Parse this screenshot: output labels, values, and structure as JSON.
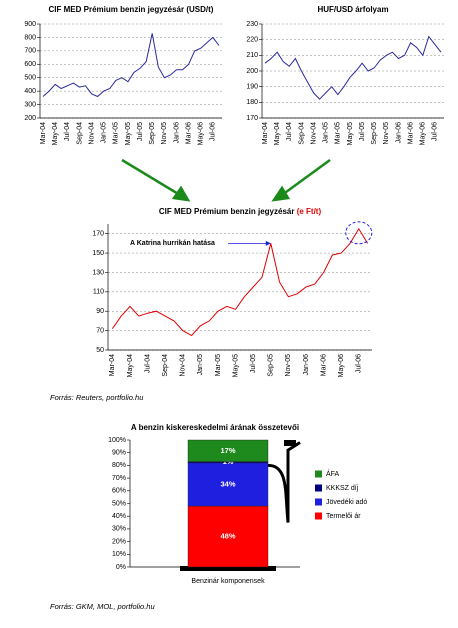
{
  "chart_data": [
    {
      "type": "line",
      "title": "CIF MED Prémium benzin jegyzésár (USD/t)",
      "categories": [
        "Mar-04",
        null,
        "May-04",
        null,
        "Jul-04",
        null,
        "Sep-04",
        null,
        "Nov-04",
        null,
        "Jan-05",
        null,
        "Mar-05",
        null,
        "May-05",
        null,
        "Jul-05",
        null,
        "Sep-05",
        null,
        "Nov-05",
        null,
        "Jan-06",
        null,
        "Mar-06",
        null,
        "May-06",
        null,
        "Jul-06",
        null
      ],
      "series": [
        {
          "color": "#2a2aa0",
          "values": [
            360,
            400,
            450,
            420,
            440,
            460,
            430,
            440,
            380,
            360,
            400,
            420,
            480,
            500,
            470,
            540,
            570,
            620,
            830,
            580,
            500,
            520,
            560,
            560,
            600,
            700,
            720,
            760,
            800,
            740
          ]
        }
      ],
      "ylim": [
        200,
        900
      ],
      "yticks": [
        200,
        300,
        400,
        500,
        600,
        700,
        800,
        900
      ],
      "grid": true
    },
    {
      "type": "line",
      "title": "HUF/USD árfolyam",
      "categories": [
        "Mar-04",
        null,
        "May-04",
        null,
        "Jul-04",
        null,
        "Sep-04",
        null,
        "Nov-04",
        null,
        "Jan-05",
        null,
        "Mar-05",
        null,
        "May-05",
        null,
        "Jul-05",
        null,
        "Sep-05",
        null,
        "Nov-05",
        null,
        "Jan-06",
        null,
        "Mar-06",
        null,
        "May-06",
        null,
        "Jul-06",
        null
      ],
      "series": [
        {
          "color": "#2a2aa0",
          "values": [
            205,
            208,
            212,
            206,
            203,
            208,
            200,
            193,
            186,
            182,
            186,
            190,
            185,
            190,
            196,
            200,
            205,
            200,
            202,
            207,
            210,
            212,
            208,
            210,
            218,
            215,
            210,
            222,
            217,
            212
          ]
        }
      ],
      "ylim": [
        170,
        230
      ],
      "yticks": [
        170,
        180,
        190,
        200,
        210,
        220,
        230
      ],
      "grid": true
    },
    {
      "type": "line",
      "title": "CIF MED Prémium benzin jegyzésár ",
      "title_unit": "(e Ft/t)",
      "annotation": "A Katrina hurrikán hatása",
      "categories": [
        "Mar-04",
        null,
        "May-04",
        null,
        "Jul-04",
        null,
        "Sep-04",
        null,
        "Nov-04",
        null,
        "Jan-05",
        null,
        "Mar-05",
        null,
        "May-05",
        null,
        "Jul-05",
        null,
        "Sep-05",
        null,
        "Nov-05",
        null,
        "Jan-06",
        null,
        "Mar-06",
        null,
        "May-06",
        null,
        "Jul-06",
        null
      ],
      "series": [
        {
          "color": "#e00000",
          "values": [
            72,
            85,
            95,
            85,
            88,
            90,
            85,
            80,
            70,
            65,
            75,
            80,
            90,
            95,
            92,
            105,
            115,
            125,
            160,
            120,
            105,
            108,
            115,
            118,
            130,
            148,
            150,
            160,
            175,
            160
          ]
        }
      ],
      "ylim": [
        50,
        180
      ],
      "yticks": [
        50,
        70,
        90,
        110,
        130,
        150,
        170
      ],
      "grid": true,
      "source": "Forrás: Reuters, portfolio.hu"
    },
    {
      "type": "stacked_bar",
      "title": "A benzin kiskereskedelmi árának összetevői",
      "categories": [
        "Benzinár komponensek"
      ],
      "series": [
        {
          "name": "Termelői ár",
          "color": "#ff0000",
          "values": [
            48
          ],
          "value_labels": [
            "48%"
          ]
        },
        {
          "name": "Jövedéki adó",
          "color": "#1f1fe0",
          "values": [
            34
          ],
          "value_labels": [
            "34%"
          ]
        },
        {
          "name": "KKKSZ díj",
          "color": "#000080",
          "values": [
            1
          ],
          "value_labels": [
            "1%"
          ]
        },
        {
          "name": "ÁFA",
          "color": "#1e8a1e",
          "values": [
            17
          ],
          "value_labels": [
            "17%"
          ]
        }
      ],
      "ylim": [
        0,
        100
      ],
      "yticks": [
        {
          "value": 0,
          "label": "0%"
        },
        {
          "value": 10,
          "label": "10%"
        },
        {
          "value": 20,
          "label": "20%"
        },
        {
          "value": 30,
          "label": "30%"
        },
        {
          "value": 40,
          "label": "40%"
        },
        {
          "value": 50,
          "label": "50%"
        },
        {
          "value": 60,
          "label": "60%"
        },
        {
          "value": 70,
          "label": "70%"
        },
        {
          "value": 80,
          "label": "80%"
        },
        {
          "value": 90,
          "label": "90%"
        },
        {
          "value": 100,
          "label": "100%"
        }
      ],
      "source": "Forrás: GKM, MOL, portfolio.hu"
    }
  ]
}
